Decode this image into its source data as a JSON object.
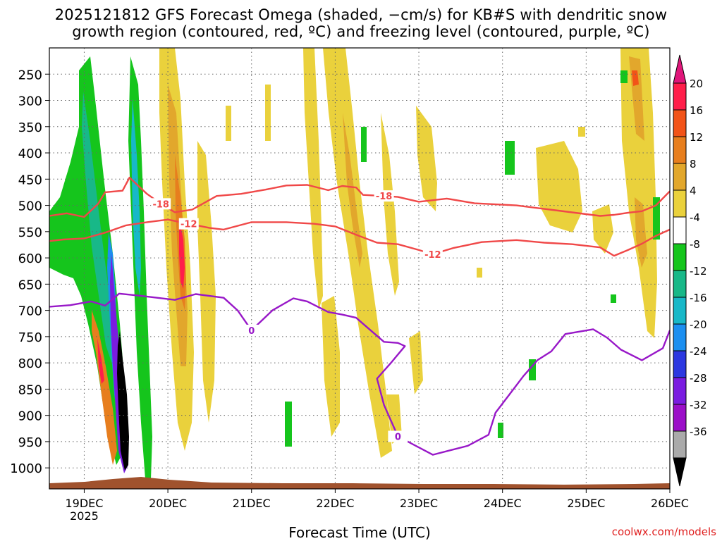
{
  "chart_data": {
    "type": "heatmap",
    "title_line1": "2025121812 GFS Forecast Omega (shaded, −cm/s) for KB#S with dendritic snow",
    "title_line2": "growth region (contoured, red, ºC) and freezing level (contoured, purple, ºC)",
    "xlabel": "Forecast Time (UTC)",
    "ylabel": "",
    "x_ticks": [
      "19DEC",
      "20DEC",
      "21DEC",
      "22DEC",
      "23DEC",
      "24DEC",
      "25DEC",
      "26DEC"
    ],
    "x_sub": "2025",
    "xlim_hours": [
      -10,
      168
    ],
    "y_ticks": [
      250,
      300,
      350,
      400,
      450,
      500,
      550,
      600,
      650,
      700,
      750,
      800,
      850,
      900,
      950,
      1000
    ],
    "ylim_hpa": [
      200,
      1040
    ],
    "colorbar": {
      "labels": [
        "20",
        "16",
        "12",
        "8",
        "4",
        "-4",
        "-8",
        "-12",
        "-16",
        "-20",
        "-24",
        "-28",
        "-32",
        "-36"
      ],
      "colors": [
        "#ff1e4a",
        "#f25318",
        "#e77e1e",
        "#e2a72c",
        "#ead13c",
        "#ffffff",
        "#15c51c",
        "#18b888",
        "#18b8c8",
        "#1c8ff0",
        "#2c38e0",
        "#7a1ce0",
        "#9b0fc8",
        "#aaaaaa"
      ],
      "top_color": "#e0167a",
      "bottom_color": "#000000"
    },
    "series": [
      {
        "name": "-18",
        "color": "#f04848",
        "points": [
          [
            -10,
            520
          ],
          [
            -5,
            515
          ],
          [
            0,
            522
          ],
          [
            4,
            497
          ],
          [
            6,
            475
          ],
          [
            11,
            472
          ],
          [
            13,
            447
          ],
          [
            18,
            478
          ],
          [
            22,
            497
          ],
          [
            26,
            513
          ],
          [
            31,
            508
          ],
          [
            38,
            482
          ],
          [
            45,
            478
          ],
          [
            52,
            470
          ],
          [
            58,
            462
          ],
          [
            64,
            461
          ],
          [
            70,
            471
          ],
          [
            74,
            463
          ],
          [
            78,
            466
          ],
          [
            80,
            480
          ],
          [
            86,
            482
          ],
          [
            90,
            484
          ],
          [
            96,
            493
          ],
          [
            104,
            487
          ],
          [
            112,
            496
          ],
          [
            124,
            500
          ],
          [
            136,
            510
          ],
          [
            148,
            520
          ],
          [
            152,
            518
          ],
          [
            156,
            514
          ],
          [
            160,
            511
          ],
          [
            164,
            500
          ],
          [
            168,
            473
          ]
        ]
      },
      {
        "name": "-12",
        "color": "#f04848",
        "points": [
          [
            -10,
            568
          ],
          [
            -6,
            565
          ],
          [
            0,
            563
          ],
          [
            6,
            552
          ],
          [
            12,
            538
          ],
          [
            18,
            532
          ],
          [
            24,
            527
          ],
          [
            30,
            535
          ],
          [
            36,
            543
          ],
          [
            40,
            546
          ],
          [
            48,
            532
          ],
          [
            58,
            532
          ],
          [
            66,
            535
          ],
          [
            72,
            540
          ],
          [
            78,
            556
          ],
          [
            84,
            571
          ],
          [
            90,
            574
          ],
          [
            96,
            585
          ],
          [
            100,
            593
          ],
          [
            106,
            581
          ],
          [
            114,
            570
          ],
          [
            124,
            566
          ],
          [
            132,
            571
          ],
          [
            140,
            574
          ],
          [
            148,
            580
          ],
          [
            152,
            596
          ],
          [
            156,
            585
          ],
          [
            160,
            573
          ],
          [
            164,
            558
          ],
          [
            168,
            546
          ]
        ]
      },
      {
        "name": "0",
        "color": "#9818c8",
        "points": [
          [
            -10,
            693
          ],
          [
            -4,
            690
          ],
          [
            2,
            683
          ],
          [
            6,
            691
          ],
          [
            10,
            668
          ],
          [
            16,
            672
          ],
          [
            26,
            680
          ],
          [
            32,
            669
          ],
          [
            40,
            676
          ],
          [
            44,
            700
          ],
          [
            48,
            738
          ],
          [
            54,
            700
          ],
          [
            60,
            677
          ],
          [
            64,
            683
          ],
          [
            70,
            703
          ],
          [
            74,
            708
          ],
          [
            78,
            714
          ],
          [
            82,
            737
          ],
          [
            86,
            760
          ],
          [
            90,
            762
          ],
          [
            92,
            768
          ],
          [
            88,
            800
          ],
          [
            84,
            830
          ],
          [
            86,
            880
          ],
          [
            90,
            940
          ],
          [
            100,
            975
          ],
          [
            110,
            958
          ],
          [
            116,
            937
          ],
          [
            118,
            895
          ],
          [
            122,
            860
          ],
          [
            126,
            825
          ],
          [
            130,
            795
          ],
          [
            134,
            778
          ],
          [
            138,
            745
          ],
          [
            146,
            736
          ],
          [
            150,
            752
          ],
          [
            154,
            775
          ],
          [
            160,
            795
          ],
          [
            166,
            772
          ],
          [
            168,
            738
          ]
        ]
      }
    ]
  }
}
